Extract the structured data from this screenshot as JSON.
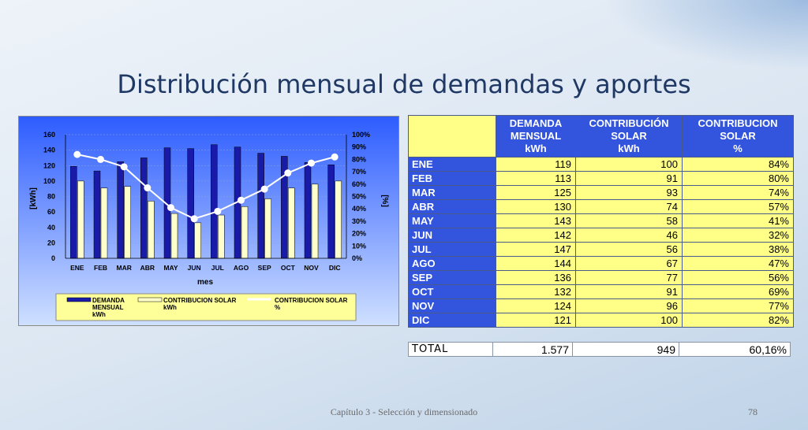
{
  "slide": {
    "title": "Distribución mensual de demandas y aportes",
    "footer": "Capítulo 3 - Selección y dimensionado",
    "page_number": "78"
  },
  "colors": {
    "demand_bar": "#1a1aa8",
    "solar_bar": "#ffffcc",
    "percent_line": "#ffffff",
    "plot_bg_top": "#2d5cff",
    "plot_bg_bottom": "#cfe0ff",
    "table_header": "#3355dd",
    "table_cell": "#ffff88"
  },
  "chart_data": {
    "type": "bar",
    "categories": [
      "ENE",
      "FEB",
      "MAR",
      "ABR",
      "MAY",
      "JUN",
      "JUL",
      "AGO",
      "SEP",
      "OCT",
      "NOV",
      "DIC"
    ],
    "series": [
      {
        "name": "DEMANDA MENSUAL kWh",
        "axis": "left",
        "type": "bar",
        "values": [
          119,
          113,
          125,
          130,
          143,
          142,
          147,
          144,
          136,
          132,
          124,
          121
        ]
      },
      {
        "name": "CONTRIBUCION SOLAR kWh",
        "axis": "left",
        "type": "bar",
        "values": [
          100,
          91,
          93,
          74,
          58,
          46,
          56,
          67,
          77,
          91,
          96,
          100
        ]
      },
      {
        "name": "CONTRIBUCION SOLAR %",
        "axis": "right",
        "type": "line",
        "values": [
          84,
          80,
          74,
          57,
          41,
          32,
          38,
          47,
          56,
          69,
          77,
          82
        ]
      }
    ],
    "legend": {
      "placement": "bottom",
      "items": [
        {
          "line1": "DEMANDA",
          "line2": "MENSUAL",
          "line3": "kWh"
        },
        {
          "line1": "CONTRIBUCION SOLAR",
          "line2": "kWh"
        },
        {
          "line1": "CONTRIBUCION SOLAR",
          "line2": "%"
        }
      ]
    },
    "xlabel": "mes",
    "ylabel": "[kWh]",
    "y2label": "[%]",
    "ylim": [
      0,
      160
    ],
    "y_ticks": [
      "0",
      "20",
      "40",
      "60",
      "80",
      "100",
      "120",
      "140",
      "160"
    ],
    "y2lim": [
      0,
      100
    ],
    "y2_ticks": [
      "0%",
      "10%",
      "20%",
      "30%",
      "40%",
      "50%",
      "60%",
      "70%",
      "80%",
      "90%",
      "100%"
    ],
    "grid": true
  },
  "table": {
    "headers": [
      "DEMANDA\nMENSUAL\nkWh",
      "CONTRIBUCIÓN\nSOLAR\nkWh",
      "CONTRIBUCION\nSOLAR\n%"
    ],
    "rows": [
      {
        "month": "ENE",
        "demand": "119",
        "solar": "100",
        "pct": "84%"
      },
      {
        "month": "FEB",
        "demand": "113",
        "solar": "91",
        "pct": "80%"
      },
      {
        "month": "MAR",
        "demand": "125",
        "solar": "93",
        "pct": "74%"
      },
      {
        "month": "ABR",
        "demand": "130",
        "solar": "74",
        "pct": "57%"
      },
      {
        "month": "MAY",
        "demand": "143",
        "solar": "58",
        "pct": "41%"
      },
      {
        "month": "JUN",
        "demand": "142",
        "solar": "46",
        "pct": "32%"
      },
      {
        "month": "JUL",
        "demand": "147",
        "solar": "56",
        "pct": "38%"
      },
      {
        "month": "AGO",
        "demand": "144",
        "solar": "67",
        "pct": "47%"
      },
      {
        "month": "SEP",
        "demand": "136",
        "solar": "77",
        "pct": "56%"
      },
      {
        "month": "OCT",
        "demand": "132",
        "solar": "91",
        "pct": "69%"
      },
      {
        "month": "NOV",
        "demand": "124",
        "solar": "96",
        "pct": "77%"
      },
      {
        "month": "DIC",
        "demand": "121",
        "solar": "100",
        "pct": "82%"
      }
    ],
    "total": {
      "label": "TOTAL",
      "demand": "1.577",
      "solar": "949",
      "pct": "60,16%"
    }
  }
}
